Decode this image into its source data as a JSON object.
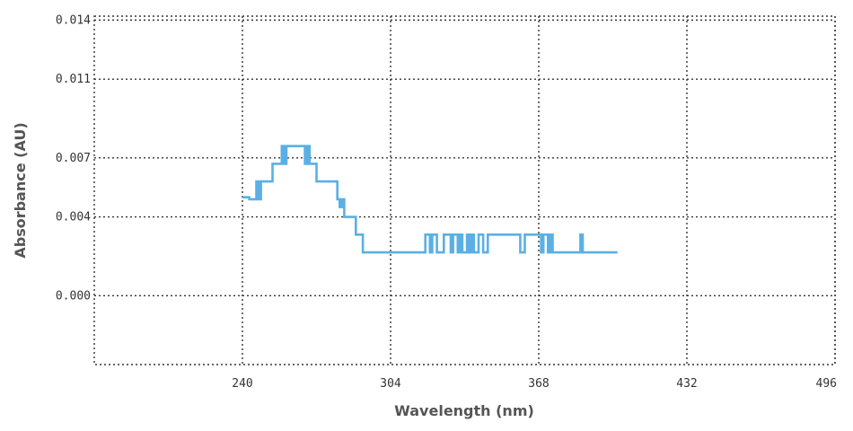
{
  "chart_data": {
    "type": "line",
    "xlabel": "Wavelength (nm)",
    "ylabel": "Absorbance (AU)",
    "x_ticks": [
      "240",
      "304",
      "368",
      "432",
      "496"
    ],
    "y_ticks": [
      "0.014",
      "0.011",
      "0.007",
      "0.004",
      "0.000"
    ],
    "xlim": [
      176,
      496
    ],
    "ylim": [
      -0.0035,
      0.0142
    ],
    "grid": true,
    "series": [
      {
        "color": "#5ab0e4",
        "x": [
          240,
          243,
          243,
          246,
          246,
          247,
          247,
          248,
          248,
          250,
          250,
          253,
          253,
          254,
          254,
          257,
          257,
          258,
          258,
          259,
          259,
          260,
          260,
          261,
          261,
          263,
          263,
          264,
          264,
          267,
          267,
          268,
          268,
          269,
          269,
          270,
          270,
          272,
          272,
          273,
          273,
          281,
          281,
          282,
          282,
          283,
          283,
          284,
          284,
          285,
          285,
          289,
          289,
          292,
          292,
          318,
          318,
          319,
          319,
          321,
          321,
          322,
          322,
          324,
          324,
          327,
          327,
          329,
          329,
          330,
          330,
          331,
          331,
          333,
          333,
          334,
          334,
          335,
          335,
          337,
          337,
          338,
          338,
          339,
          339,
          340,
          340,
          342,
          342,
          343,
          343,
          344,
          344,
          346,
          346,
          347,
          347,
          360,
          360,
          362,
          362,
          367,
          367,
          369,
          369,
          370,
          370,
          372,
          372,
          373,
          373,
          374,
          374,
          376,
          376,
          378,
          378,
          386,
          386,
          387,
          387,
          402
        ],
        "y": [
          0.005,
          0.005,
          0.0049,
          0.0049,
          0.0058,
          0.0058,
          0.0049,
          0.0049,
          0.0058,
          0.0058,
          0.0058,
          0.0058,
          0.0067,
          0.0067,
          0.0067,
          0.0067,
          0.0076,
          0.0076,
          0.0067,
          0.0067,
          0.0076,
          0.0076,
          0.0076,
          0.0076,
          0.0076,
          0.0076,
          0.0076,
          0.0076,
          0.0076,
          0.0076,
          0.0067,
          0.0067,
          0.0076,
          0.0076,
          0.0067,
          0.0067,
          0.0067,
          0.0067,
          0.0058,
          0.0058,
          0.0058,
          0.0058,
          0.0049,
          0.0049,
          0.0045,
          0.0045,
          0.0049,
          0.0049,
          0.004,
          0.004,
          0.004,
          0.004,
          0.0031,
          0.0031,
          0.0022,
          0.0022,
          0.0022,
          0.0022,
          0.0031,
          0.0031,
          0.0022,
          0.0022,
          0.0031,
          0.0031,
          0.0022,
          0.0022,
          0.0031,
          0.0031,
          0.0031,
          0.0031,
          0.0022,
          0.0022,
          0.0031,
          0.0031,
          0.0022,
          0.0022,
          0.0031,
          0.0031,
          0.0022,
          0.0022,
          0.0031,
          0.0031,
          0.0022,
          0.0022,
          0.0031,
          0.0031,
          0.0022,
          0.0022,
          0.0031,
          0.0031,
          0.0031,
          0.0031,
          0.0022,
          0.0022,
          0.0031,
          0.0031,
          0.0031,
          0.0031,
          0.0022,
          0.0022,
          0.0031,
          0.0031,
          0.0031,
          0.0031,
          0.0022,
          0.0022,
          0.0031,
          0.0031,
          0.0022,
          0.0022,
          0.0031,
          0.0031,
          0.0022,
          0.0022,
          0.0022,
          0.0022,
          0.0022,
          0.0022,
          0.0031,
          0.0031,
          0.0022,
          0.0022
        ]
      }
    ]
  }
}
